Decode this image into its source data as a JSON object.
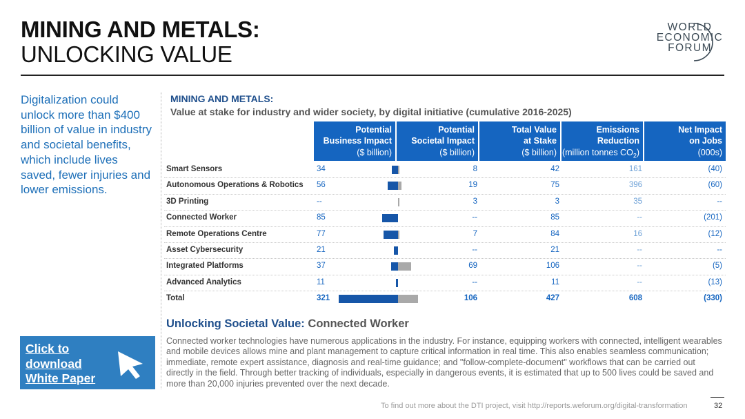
{
  "header": {
    "title_line1": "MINING AND METALS:",
    "title_line2": "UNLOCKING VALUE"
  },
  "logo": {
    "line1": "WORLD",
    "line2": "ECONOMIC",
    "line3": "FORUM"
  },
  "left_blurb": "Digitalization could unlock more than $400 billion of value in industry and societal benefits, which include lives saved, fewer injuries and lower emissions.",
  "cta": {
    "label": "Click to download White Paper",
    "icon": "cursor-arrow-icon"
  },
  "table": {
    "title": "MINING AND METALS:",
    "subtitle": "Value at stake for industry and wider society, by digital initiative (cumulative 2016-2025)",
    "columns": [
      {
        "line1": "Potential",
        "line2": "Business Impact",
        "line3": "($ billion)"
      },
      {
        "line1": "Potential",
        "line2": "Societal Impact",
        "line3": "($ billion)"
      },
      {
        "line1": "Total Value",
        "line2": "at Stake",
        "line3": "($ billion)"
      },
      {
        "line1": "Emissions",
        "line2": "Reduction",
        "line3": "(million tonnes CO",
        "line3_sub": "2",
        "line3_end": ")"
      },
      {
        "line1": "Net Impact",
        "line2": "on Jobs",
        "line3": "(000s)"
      }
    ],
    "rows": [
      {
        "label": "Smart Sensors",
        "business": "34",
        "societal": "8",
        "total": "42",
        "emissions": "161",
        "jobs": "(40)",
        "business_value": 34,
        "societal_value": 8
      },
      {
        "label": "Autonomous Operations & Robotics",
        "business": "56",
        "societal": "19",
        "total": "75",
        "emissions": "396",
        "jobs": "(60)",
        "business_value": 56,
        "societal_value": 19
      },
      {
        "label": "3D Printing",
        "business": "--",
        "societal": "3",
        "total": "3",
        "emissions": "35",
        "jobs": "--",
        "business_value": 0,
        "societal_value": 3
      },
      {
        "label": "Connected Worker",
        "business": "85",
        "societal": "--",
        "total": "85",
        "emissions": "--",
        "jobs": "(201)",
        "business_value": 85,
        "societal_value": 0
      },
      {
        "label": "Remote Operations Centre",
        "business": "77",
        "societal": "7",
        "total": "84",
        "emissions": "16",
        "jobs": "(12)",
        "business_value": 77,
        "societal_value": 7
      },
      {
        "label": "Asset Cybersecurity",
        "business": "21",
        "societal": "--",
        "total": "21",
        "emissions": "--",
        "jobs": "--",
        "business_value": 21,
        "societal_value": 0
      },
      {
        "label": "Integrated Platforms",
        "business": "37",
        "societal": "69",
        "total": "106",
        "emissions": "--",
        "jobs": "(5)",
        "business_value": 37,
        "societal_value": 69
      },
      {
        "label": "Advanced Analytics",
        "business": "11",
        "societal": "--",
        "total": "11",
        "emissions": "--",
        "jobs": "(13)",
        "business_value": 11,
        "societal_value": 0
      }
    ],
    "total_row": {
      "label": "Total",
      "business": "321",
      "societal": "106",
      "total": "427",
      "emissions": "608",
      "jobs": "(330)",
      "business_value": 321,
      "societal_value": 106
    }
  },
  "unlock": {
    "heading": "Unlocking Societal Value:",
    "heading_sub": "Connected Worker",
    "body": "Connected worker technologies have numerous applications in the industry. For instance, equipping workers with connected, intelligent wearables and mobile devices allows mine and plant management to capture critical information in real time. This also enables seamless communication; immediate, remote expert assistance, diagnosis and real-time guidance; and \"follow-complete-document\" workflows that can be carried out directly in the field. Through better tracking of individuals, especially in dangerous events, it is estimated that up to 500 lives could be saved and more than 20,000 injuries prevented over the next decade."
  },
  "footer": {
    "text": "To find out more about the DTI project, visit http://reports.weforum.org/digital-transformation",
    "page": "32"
  },
  "colors": {
    "brand_blue": "#1565c0",
    "bar_business": "#1656a8",
    "bar_societal": "#a9a9a9",
    "cta_bg": "#2f7fc1"
  }
}
